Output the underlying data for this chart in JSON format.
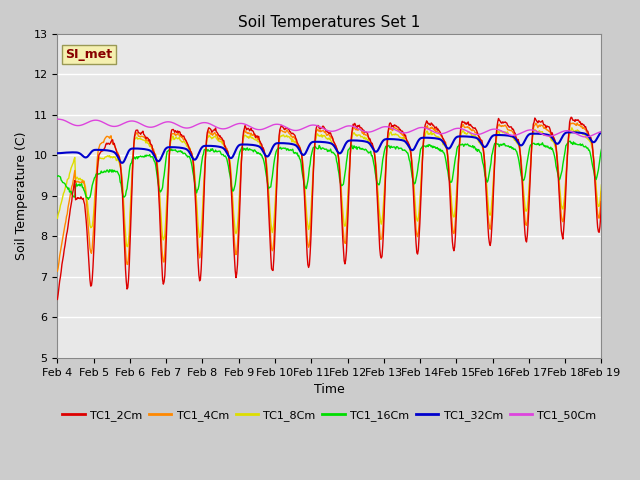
{
  "title": "Soil Temperatures Set 1",
  "xlabel": "Time",
  "ylabel": "Soil Temperature (C)",
  "ylim": [
    5.0,
    13.0
  ],
  "yticks": [
    5.0,
    6.0,
    7.0,
    8.0,
    9.0,
    10.0,
    11.0,
    12.0,
    13.0
  ],
  "x_labels": [
    "Feb 4",
    "Feb 5",
    "Feb 6",
    "Feb 7",
    "Feb 8",
    "Feb 9",
    "Feb 10",
    "Feb 11",
    "Feb 12",
    "Feb 13",
    "Feb 14",
    "Feb 15",
    "Feb 16",
    "Feb 17",
    "Feb 18",
    "Feb 19"
  ],
  "series": {
    "TC1_2Cm": {
      "color": "#dd0000",
      "lw": 1.0
    },
    "TC1_4Cm": {
      "color": "#ff8800",
      "lw": 1.0
    },
    "TC1_8Cm": {
      "color": "#dddd00",
      "lw": 1.0
    },
    "TC1_16Cm": {
      "color": "#00dd00",
      "lw": 1.0
    },
    "TC1_32Cm": {
      "color": "#0000cc",
      "lw": 1.5
    },
    "TC1_50Cm": {
      "color": "#dd44dd",
      "lw": 1.0
    }
  },
  "annotation_text": "SI_met",
  "annotation_color": "#880000",
  "bg_color": "#e8e8e8",
  "grid_color": "#ffffff",
  "fig_bg": "#cccccc"
}
